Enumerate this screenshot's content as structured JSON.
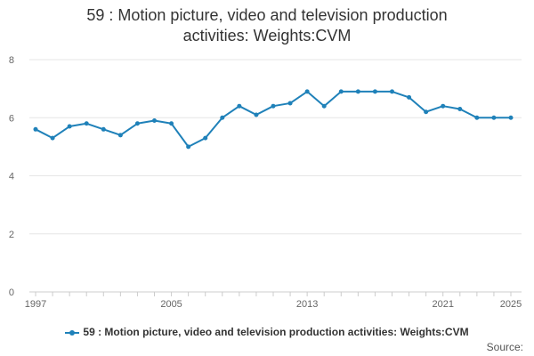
{
  "chart_data": {
    "type": "line",
    "title_lines": [
      "59 : Motion picture, video and television production",
      "activities: Weights:CVM"
    ],
    "x": [
      1997,
      1998,
      1999,
      2000,
      2001,
      2002,
      2003,
      2004,
      2005,
      2006,
      2007,
      2008,
      2009,
      2010,
      2011,
      2012,
      2013,
      2014,
      2015,
      2016,
      2017,
      2018,
      2019,
      2020,
      2021,
      2022,
      2023,
      2024,
      2025
    ],
    "x_tick_labels": [
      "1997",
      "2005",
      "2013",
      "2021",
      "2025"
    ],
    "xlim": [
      1997,
      2025
    ],
    "y_tick_labels": [
      "0",
      "2",
      "4",
      "6",
      "8"
    ],
    "ylim": [
      0,
      8
    ],
    "grid": true,
    "legend_position": "bottom",
    "series": [
      {
        "name": "59 : Motion picture, video and television production activities: Weights:CVM",
        "color": "#1f81b9",
        "values": [
          5.6,
          5.3,
          5.7,
          5.8,
          5.6,
          5.4,
          5.8,
          5.9,
          5.8,
          5.0,
          5.3,
          6.0,
          6.4,
          6.1,
          6.4,
          6.5,
          6.9,
          6.4,
          6.9,
          6.9,
          6.9,
          6.9,
          6.7,
          6.2,
          6.4,
          6.3,
          6.0,
          6.0,
          6.0
        ]
      }
    ]
  },
  "source_label": "Source:"
}
